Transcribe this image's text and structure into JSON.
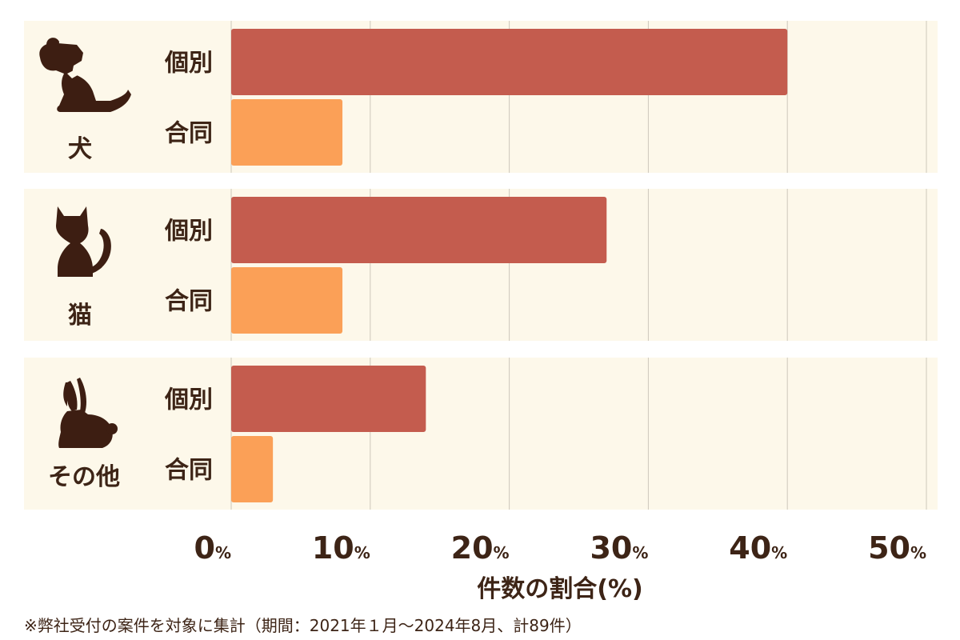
{
  "chart_data": {
    "type": "bar",
    "orientation": "horizontal",
    "groups": [
      {
        "name": "犬",
        "icon": "dog-icon",
        "bars": [
          {
            "label": "個別",
            "value": 40
          },
          {
            "label": "合同",
            "value": 8
          }
        ]
      },
      {
        "name": "猫",
        "icon": "cat-icon",
        "bars": [
          {
            "label": "個別",
            "value": 27
          },
          {
            "label": "合同",
            "value": 8
          }
        ]
      },
      {
        "name": "その他",
        "icon": "rabbit-icon",
        "bars": [
          {
            "label": "個別",
            "value": 14
          },
          {
            "label": "合同",
            "value": 3
          }
        ]
      }
    ],
    "xlim": [
      0,
      50
    ],
    "xticks": [
      0,
      10,
      20,
      30,
      40,
      50
    ],
    "tick_unit": "%",
    "xlabel": "件数の割合(%)",
    "grid": true,
    "legend": "none"
  },
  "colors": {
    "individual": "#c45c4e",
    "joint": "#fba057",
    "panel": "#fdf8ea",
    "grid": "#cdc7bb",
    "text": "#3d2416",
    "icon": "#3d1e12"
  },
  "footnote": "※弊社受付の案件を対象に集計（期間：2021年１月～2024年8月、計89件）"
}
